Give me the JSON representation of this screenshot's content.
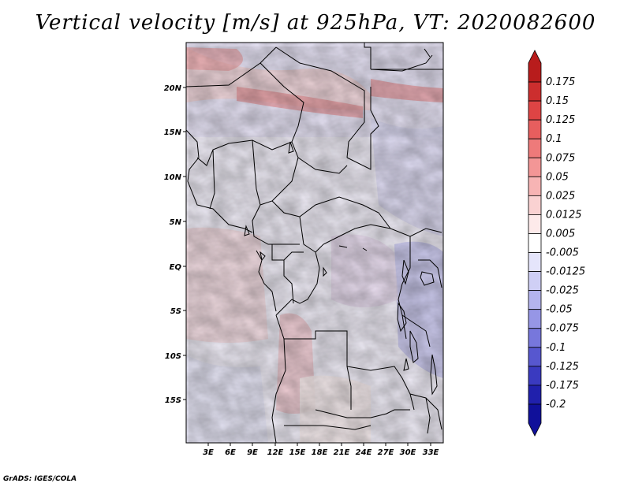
{
  "title": "Vertical velocity [m/s] at 925hPa, VT: 2020082600",
  "credit": "GrADS: IGES/COLA",
  "map": {
    "lat_labels": [
      "20N",
      "15N",
      "10N",
      "5N",
      "EQ",
      "5S",
      "10S",
      "15S"
    ],
    "lon_labels": [
      "3E",
      "6E",
      "9E",
      "12E",
      "15E",
      "18E",
      "21E",
      "24E",
      "27E",
      "30E",
      "33E"
    ]
  },
  "colorbar": {
    "levels": [
      "0.175",
      "0.15",
      "0.125",
      "0.1",
      "0.075",
      "0.05",
      "0.025",
      "0.0125",
      "0.005",
      "-0.005",
      "-0.0125",
      "-0.025",
      "-0.05",
      "-0.075",
      "-0.1",
      "-0.125",
      "-0.175",
      "-0.2"
    ],
    "colors": [
      "#b81c1c",
      "#cc2e2e",
      "#de4444",
      "#e75e5e",
      "#ee7a7a",
      "#f39696",
      "#f7b4b4",
      "#fad2d2",
      "#fdeaea",
      "#ffffff",
      "#e5e5fb",
      "#cfcff5",
      "#b4b4ee",
      "#9696e6",
      "#7777dc",
      "#5757cf",
      "#3a3ac0",
      "#2020ac",
      "#10109a"
    ]
  }
}
